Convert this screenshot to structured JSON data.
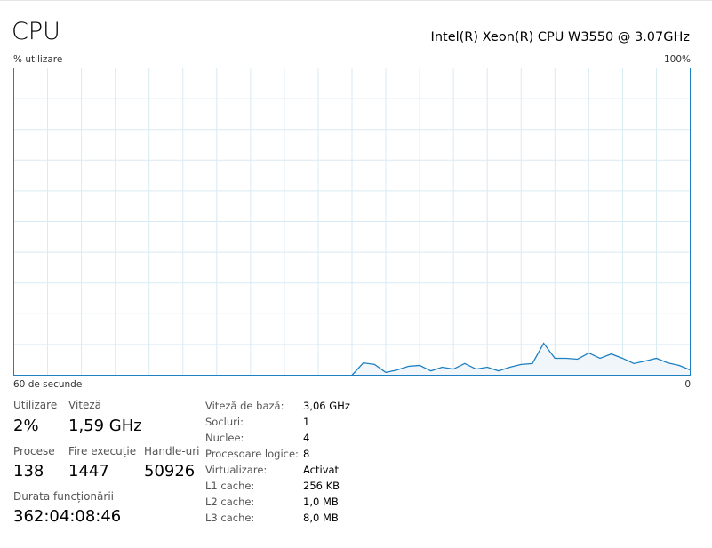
{
  "header": {
    "title": "CPU",
    "cpu_name": "Intel(R) Xeon(R) CPU W3550 @ 3.07GHz"
  },
  "graph": {
    "y_label": "% utilizare",
    "y_max_label": "100%",
    "x_left_label": "60 de secunde",
    "x_right_label": "0",
    "line_color": "#1e7fc2",
    "fill_color": "#f1f6fb",
    "grid_color": "#d9eaf4",
    "border_color": "#1e7fc2"
  },
  "chart_data": {
    "type": "area",
    "x_unit": "seconds ago",
    "x": [
      60,
      59,
      58,
      57,
      56,
      55,
      54,
      53,
      52,
      51,
      50,
      49,
      48,
      47,
      46,
      45,
      44,
      43,
      42,
      41,
      40,
      39,
      38,
      37,
      36,
      35,
      34,
      33,
      32,
      31,
      30,
      29,
      28,
      27,
      26,
      25,
      24,
      23,
      22,
      21,
      20,
      19,
      18,
      17,
      16,
      15,
      14,
      13,
      12,
      11,
      10,
      9,
      8,
      7,
      6,
      5,
      4,
      3,
      2,
      1,
      0
    ],
    "values": [
      null,
      null,
      null,
      null,
      null,
      null,
      null,
      null,
      null,
      null,
      null,
      null,
      null,
      null,
      null,
      null,
      null,
      null,
      null,
      null,
      null,
      null,
      null,
      null,
      null,
      null,
      null,
      null,
      null,
      null,
      0,
      4,
      3.5,
      0.9,
      1.7,
      2.9,
      3.2,
      1.4,
      2.6,
      2,
      3.8,
      2,
      2.6,
      1.4,
      2.6,
      3.5,
      3.8,
      10.4,
      5.5,
      5.5,
      5.2,
      7.2,
      5.5,
      6.9,
      5.5,
      3.8,
      4.6,
      5.5,
      4,
      3.2,
      1.7
    ],
    "ylim": [
      0,
      100
    ],
    "grid": true
  },
  "stats": {
    "utilization": {
      "label": "Utilizare",
      "value": "2%"
    },
    "speed": {
      "label": "Viteză",
      "value": "1,59 GHz"
    },
    "processes": {
      "label": "Procese",
      "value": "138"
    },
    "threads": {
      "label": "Fire execuție",
      "value": "1447"
    },
    "handles": {
      "label": "Handle-uri",
      "value": "50926"
    },
    "uptime": {
      "label": "Durata funcționării",
      "value": "362:04:08:46"
    }
  },
  "details": [
    {
      "label": "Viteză de bază:",
      "value": "3,06 GHz"
    },
    {
      "label": "Socluri:",
      "value": "1"
    },
    {
      "label": "Nuclee:",
      "value": "4"
    },
    {
      "label": "Procesoare logice:",
      "value": "8"
    },
    {
      "label": "Virtualizare:",
      "value": "Activat"
    },
    {
      "label": "L1 cache:",
      "value": "256 KB"
    },
    {
      "label": "L2 cache:",
      "value": "1,0 MB"
    },
    {
      "label": "L3 cache:",
      "value": "8,0 MB"
    }
  ]
}
